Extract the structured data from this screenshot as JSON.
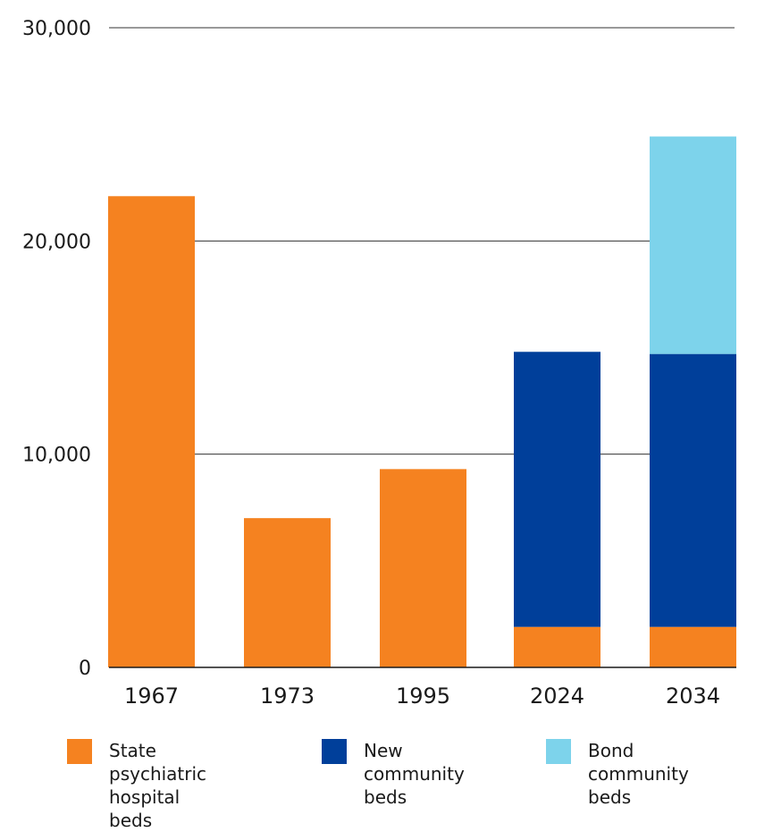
{
  "chart_data": {
    "type": "bar",
    "stacked": true,
    "categories": [
      "1967",
      "1973",
      "1995",
      "2024",
      "2034"
    ],
    "series": [
      {
        "name": "State psychiatric hospital beds",
        "legend_label": "State\npsychiatric\nhospital beds",
        "color": "#f58220",
        "values": [
          22100,
          7000,
          9300,
          1900,
          1900
        ]
      },
      {
        "name": "New community beds",
        "legend_label": "New\ncommunity\nbeds",
        "color": "#003f9a",
        "values": [
          0,
          0,
          0,
          12900,
          12800
        ]
      },
      {
        "name": "Bond community beds",
        "legend_label": "Bond\ncommunity beds",
        "color": "#7dd3eb",
        "values": [
          0,
          0,
          0,
          0,
          10200
        ]
      }
    ],
    "yticks": [
      "0",
      "10,000",
      "20,000",
      "30,000"
    ],
    "ylim": [
      0,
      30000
    ],
    "grid": true,
    "title": "",
    "xlabel": "",
    "ylabel": "",
    "legend_position": "bottom"
  }
}
